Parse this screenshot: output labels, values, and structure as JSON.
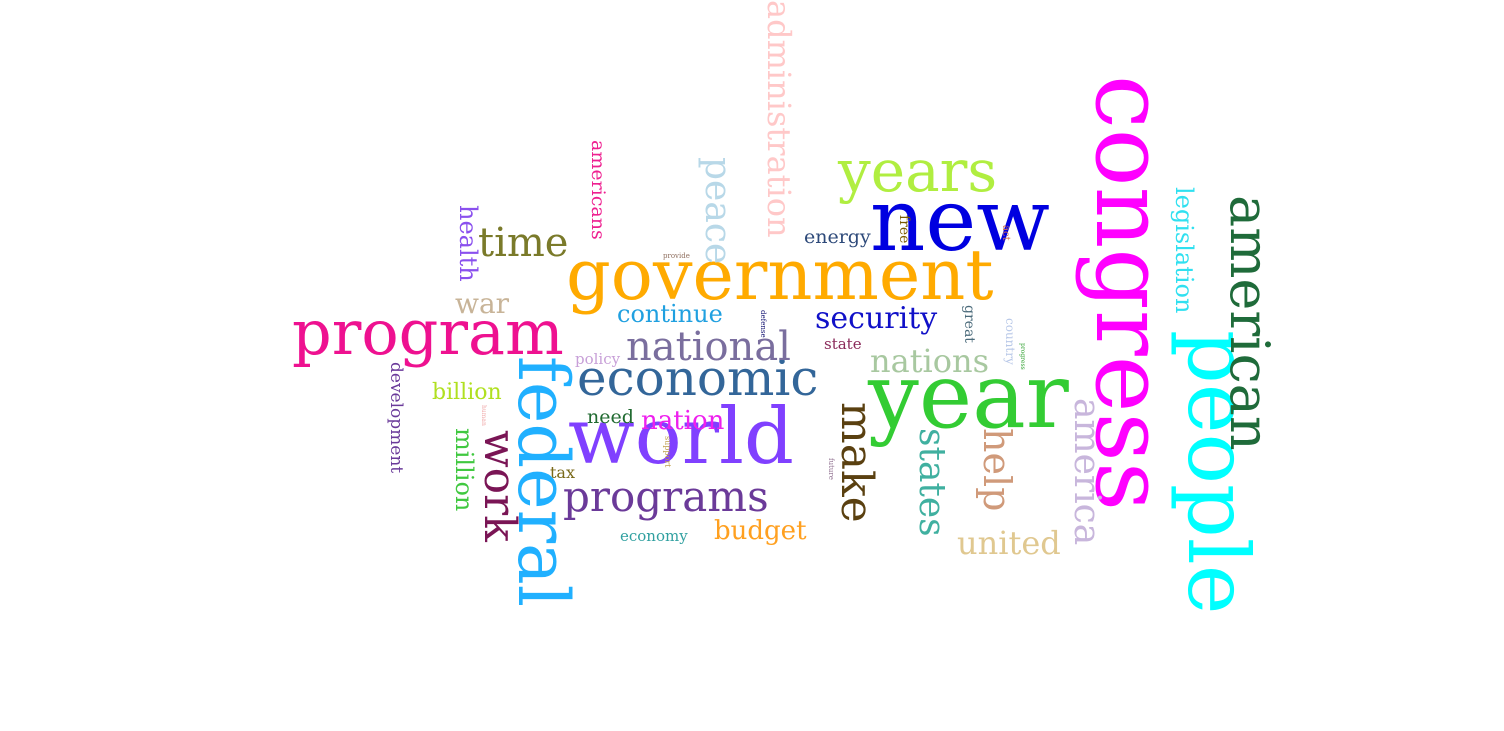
{
  "words": [
    {
      "key": "congress",
      "text": "congress",
      "color": "#ff00ff"
    },
    {
      "key": "new",
      "text": "new",
      "color": "#0000e0"
    },
    {
      "key": "year",
      "text": "year",
      "color": "#33cc33"
    },
    {
      "key": "government",
      "text": "government",
      "color": "#ffaa00"
    },
    {
      "key": "people",
      "text": "people",
      "color": "#00ffff"
    },
    {
      "key": "world",
      "text": "world",
      "color": "#8040ff"
    },
    {
      "key": "program",
      "text": "program",
      "color": "#ee1190"
    },
    {
      "key": "federal",
      "text": "federal",
      "color": "#20b0ff"
    },
    {
      "key": "economic",
      "text": "economic",
      "color": "#336699"
    },
    {
      "key": "american",
      "text": "american",
      "color": "#1f6b3a"
    },
    {
      "key": "years",
      "text": "years",
      "color": "#b0ee40"
    },
    {
      "key": "national",
      "text": "national",
      "color": "#7a6e9e"
    },
    {
      "key": "programs",
      "text": "programs",
      "color": "#6b3a99"
    },
    {
      "key": "administration",
      "text": "administration",
      "color": "#ffc8c8"
    },
    {
      "key": "make",
      "text": "make",
      "color": "#5a4010"
    },
    {
      "key": "work",
      "text": "work",
      "color": "#7a1555"
    },
    {
      "key": "time",
      "text": "time",
      "color": "#7a7a2a"
    },
    {
      "key": "america",
      "text": "america",
      "color": "#c8b6dc"
    },
    {
      "key": "states",
      "text": "states",
      "color": "#40b0a0"
    },
    {
      "key": "security",
      "text": "security",
      "color": "#1010c8"
    },
    {
      "key": "help",
      "text": "help",
      "color": "#d09a7a"
    },
    {
      "key": "nations",
      "text": "nations",
      "color": "#a8c8a0"
    },
    {
      "key": "united",
      "text": "united",
      "color": "#e0c890"
    },
    {
      "key": "peace",
      "text": "peace",
      "color": "#b8d8e8"
    },
    {
      "key": "legislation",
      "text": "legislation",
      "color": "#30e0f0"
    },
    {
      "key": "nation",
      "text": "nation",
      "color": "#ee20ee"
    },
    {
      "key": "continue",
      "text": "continue",
      "color": "#20a0e0"
    },
    {
      "key": "budget",
      "text": "budget",
      "color": "#ffa020"
    },
    {
      "key": "war",
      "text": "war",
      "color": "#c8b498"
    },
    {
      "key": "health",
      "text": "health",
      "color": "#8a50ee"
    },
    {
      "key": "million",
      "text": "million",
      "color": "#40c840"
    },
    {
      "key": "billion",
      "text": "billion",
      "color": "#b0e020"
    },
    {
      "key": "americans",
      "text": "americans",
      "color": "#ee2090"
    },
    {
      "key": "development",
      "text": "development",
      "color": "#6a3a9a"
    },
    {
      "key": "energy",
      "text": "energy",
      "color": "#2e4a7a"
    },
    {
      "key": "need",
      "text": "need",
      "color": "#206a30"
    },
    {
      "key": "economy",
      "text": "economy",
      "color": "#30a0a0"
    },
    {
      "key": "policy",
      "text": "policy",
      "color": "#c8a0d8"
    },
    {
      "key": "state",
      "text": "state",
      "color": "#8a2a5a"
    },
    {
      "key": "tax",
      "text": "tax",
      "color": "#7a6a1a"
    },
    {
      "key": "free",
      "text": "free",
      "color": "#7a5a00"
    },
    {
      "key": "great",
      "text": "great",
      "color": "#4a6a7a"
    },
    {
      "key": "country",
      "text": "country",
      "color": "#b8c8e8"
    },
    {
      "key": "act",
      "text": "act",
      "color": "#d07050"
    },
    {
      "key": "provide",
      "text": "provide",
      "color": "#907060"
    },
    {
      "key": "defense",
      "text": "defense",
      "color": "#101070"
    },
    {
      "key": "support",
      "text": "support",
      "color": "#c0a050"
    },
    {
      "key": "future",
      "text": "future",
      "color": "#907090"
    },
    {
      "key": "progress",
      "text": "progress",
      "color": "#30a030"
    },
    {
      "key": "human",
      "text": "human",
      "color": "#f0a8a8"
    }
  ]
}
